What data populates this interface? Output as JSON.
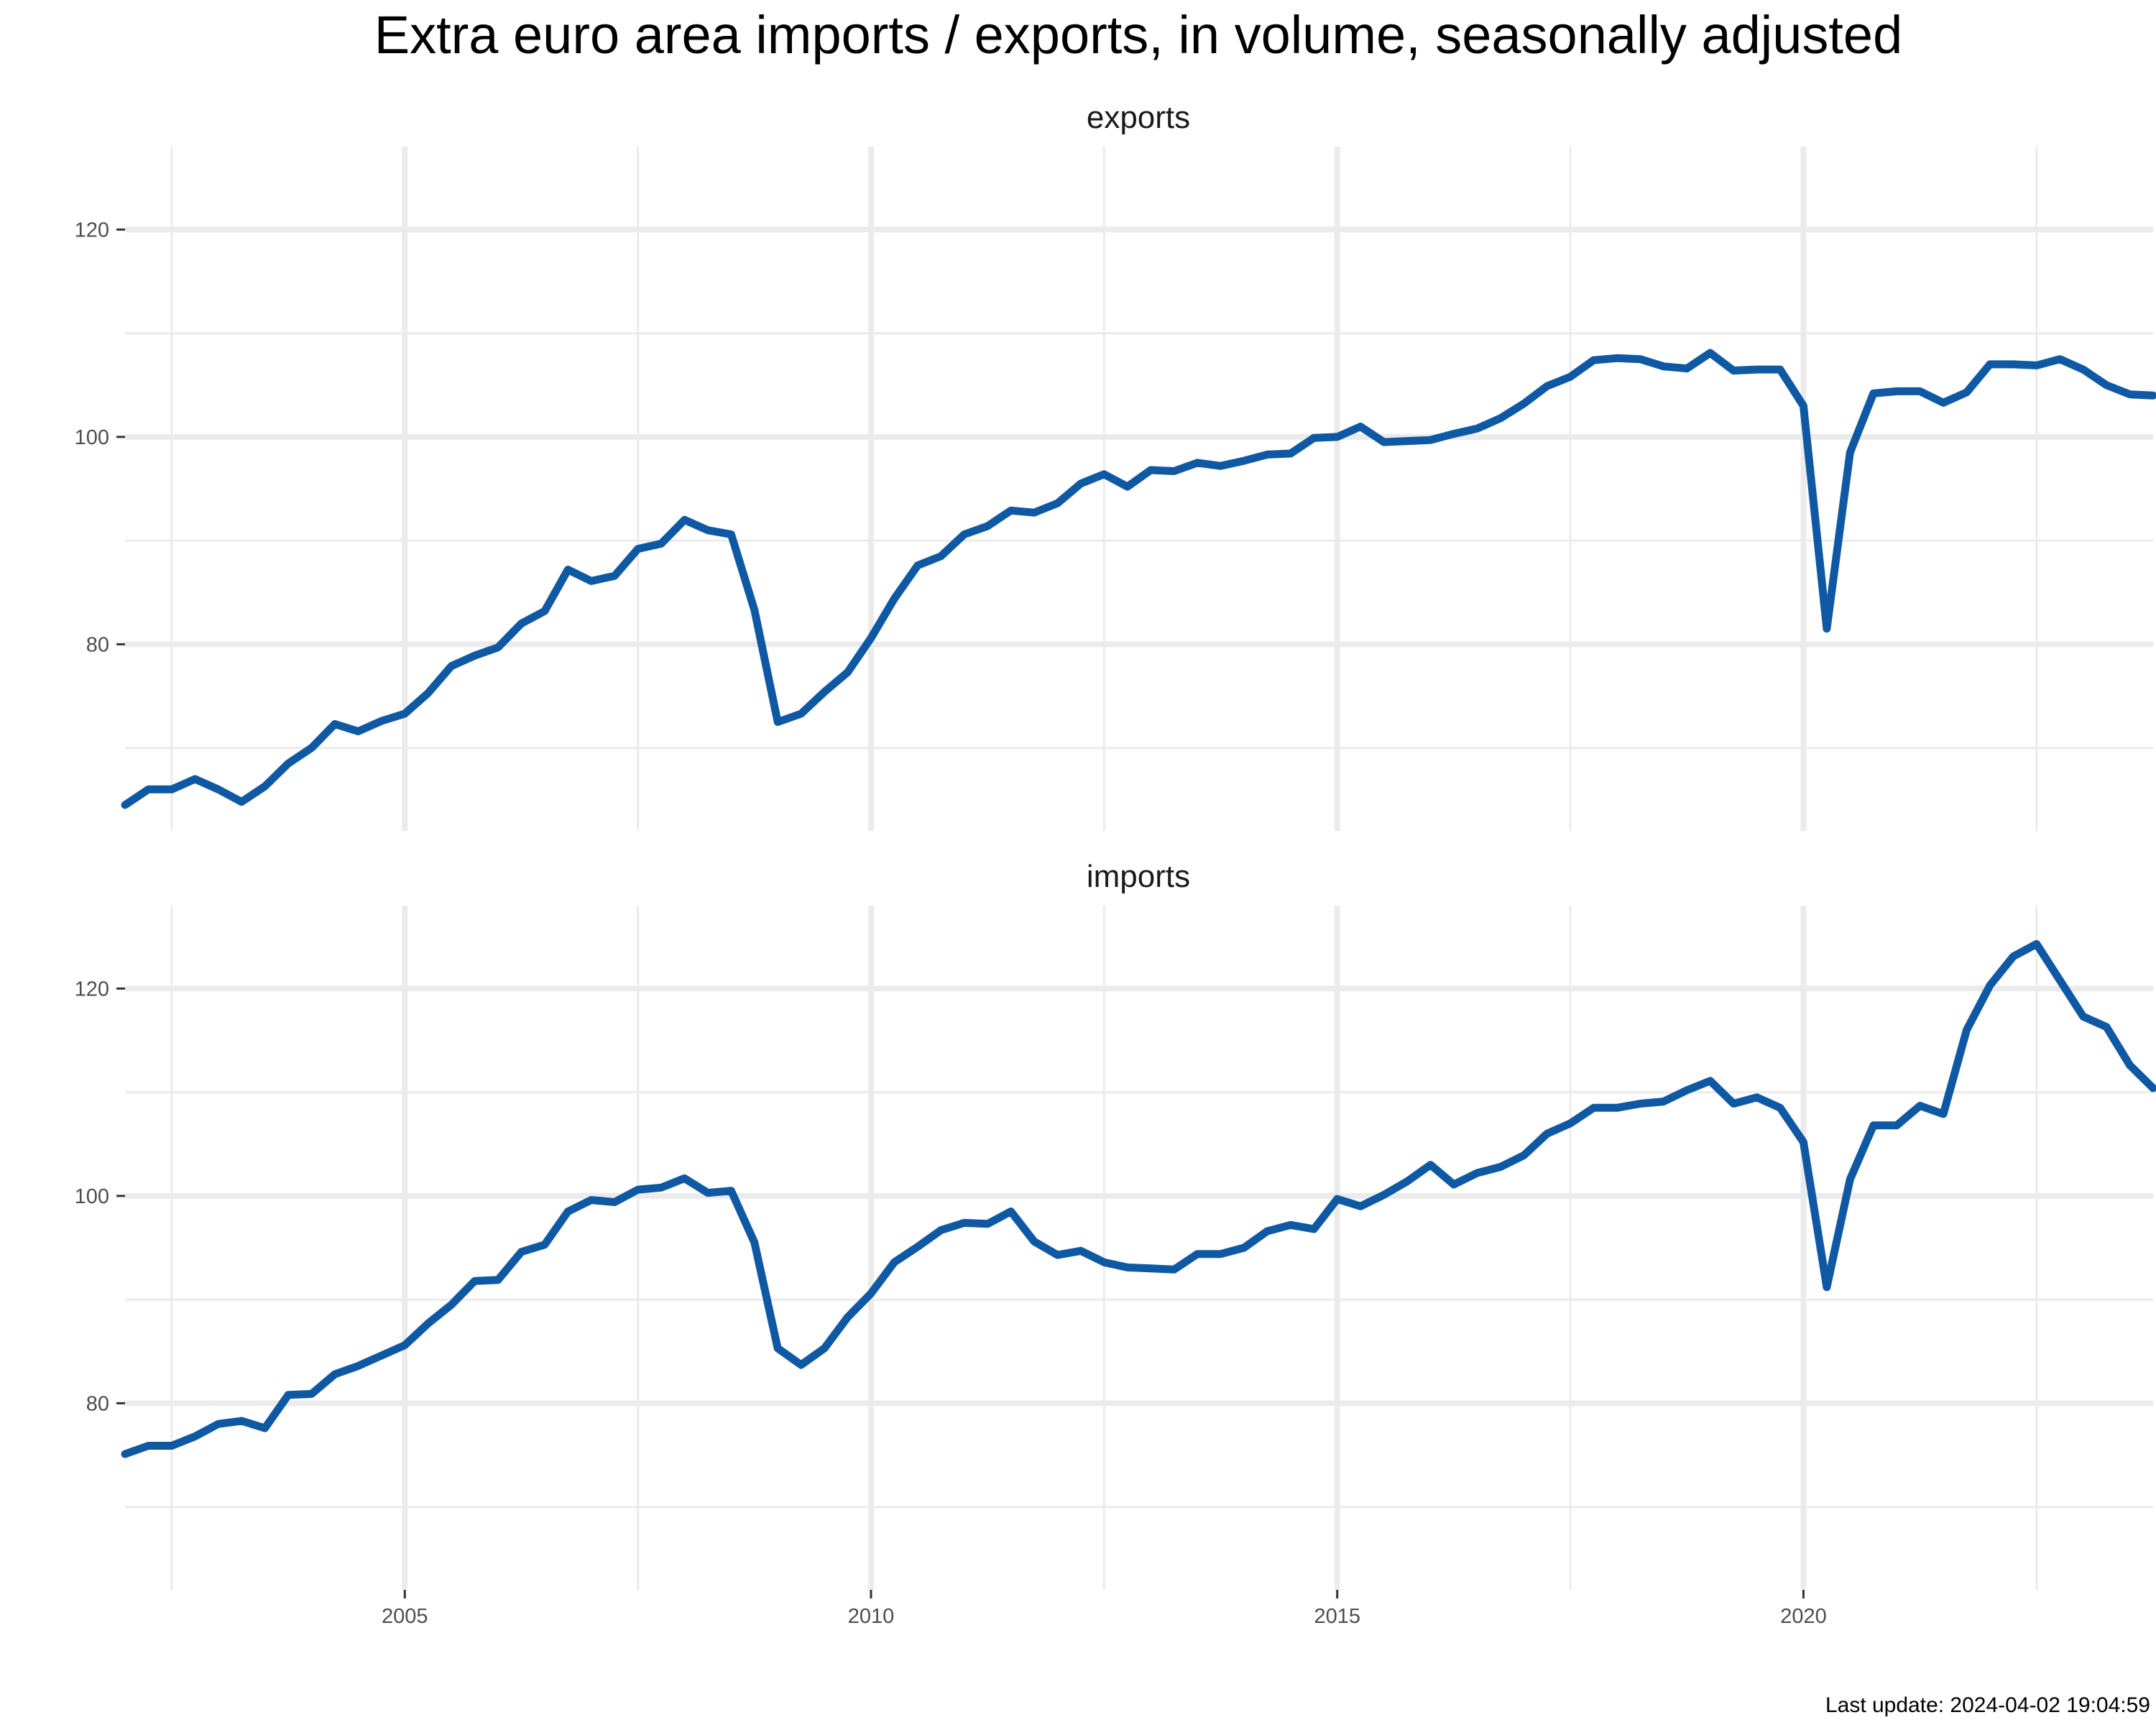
{
  "title": "Extra euro area imports / exports, in volume, seasonally adjusted",
  "caption": "Last update: 2024-04-02 19:04:59",
  "colors": {
    "line": "#0f59a4",
    "grid": "#ebebeb"
  },
  "chart_data": {
    "type": "line",
    "x_unit": "year (quarterly observations)",
    "xlim": [
      2002.0,
      2023.75
    ],
    "x_ticks": [
      2005,
      2010,
      2015,
      2020
    ],
    "x_tick_labels": [
      "2005",
      "2010",
      "2015",
      "2020"
    ],
    "ylim": [
      62,
      128
    ],
    "y_ticks": [
      80,
      100,
      120
    ],
    "y_tick_labels": [
      "80",
      "100",
      "120"
    ],
    "grid": true,
    "legend": "none",
    "x_start": 2002.0,
    "x_step": 0.25,
    "panels": [
      {
        "name": "exports",
        "values": [
          64.5,
          66.0,
          66.0,
          67.0,
          66.0,
          64.8,
          66.3,
          68.5,
          70.0,
          72.3,
          71.6,
          72.6,
          73.3,
          75.3,
          77.9,
          78.9,
          79.7,
          82.0,
          83.2,
          87.2,
          86.1,
          86.6,
          89.2,
          89.7,
          92.0,
          91.0,
          90.6,
          83.3,
          72.5,
          73.3,
          75.4,
          77.3,
          80.6,
          84.4,
          87.6,
          88.5,
          90.6,
          91.4,
          92.9,
          92.7,
          93.6,
          95.5,
          96.4,
          95.2,
          96.8,
          96.7,
          97.5,
          97.2,
          97.7,
          98.3,
          98.4,
          99.9,
          100.0,
          101.0,
          99.5,
          99.6,
          99.7,
          100.3,
          100.8,
          101.8,
          103.2,
          104.9,
          105.8,
          107.4,
          107.6,
          107.5,
          106.8,
          106.6,
          108.1,
          106.4,
          106.5,
          106.5,
          103.0,
          81.5,
          98.5,
          104.2,
          104.4,
          104.4,
          103.3,
          104.3,
          107.0,
          107.0,
          106.9,
          107.5,
          106.5,
          105.0,
          104.1,
          104.0
        ]
      },
      {
        "name": "imports",
        "values": [
          75.1,
          75.9,
          75.9,
          76.8,
          78.0,
          78.3,
          77.6,
          80.8,
          80.9,
          82.8,
          83.6,
          84.6,
          85.6,
          87.7,
          89.5,
          91.8,
          91.9,
          94.6,
          95.3,
          98.5,
          99.6,
          99.4,
          100.6,
          100.8,
          101.7,
          100.3,
          100.5,
          95.5,
          85.3,
          83.7,
          85.3,
          88.3,
          90.6,
          93.6,
          95.1,
          96.7,
          97.4,
          97.3,
          98.5,
          95.6,
          94.3,
          94.7,
          93.6,
          93.1,
          93.0,
          92.9,
          94.4,
          94.4,
          95.0,
          96.6,
          97.2,
          96.8,
          99.7,
          99.0,
          100.1,
          101.4,
          103.0,
          101.1,
          102.2,
          102.8,
          103.9,
          106.0,
          107.0,
          108.5,
          108.5,
          108.9,
          109.1,
          110.2,
          111.1,
          108.9,
          109.5,
          108.5,
          105.2,
          91.2,
          101.6,
          106.8,
          106.8,
          108.7,
          107.9,
          116.0,
          120.3,
          123.1,
          124.3,
          120.8,
          117.3,
          116.3,
          112.6,
          110.4
        ]
      }
    ]
  }
}
